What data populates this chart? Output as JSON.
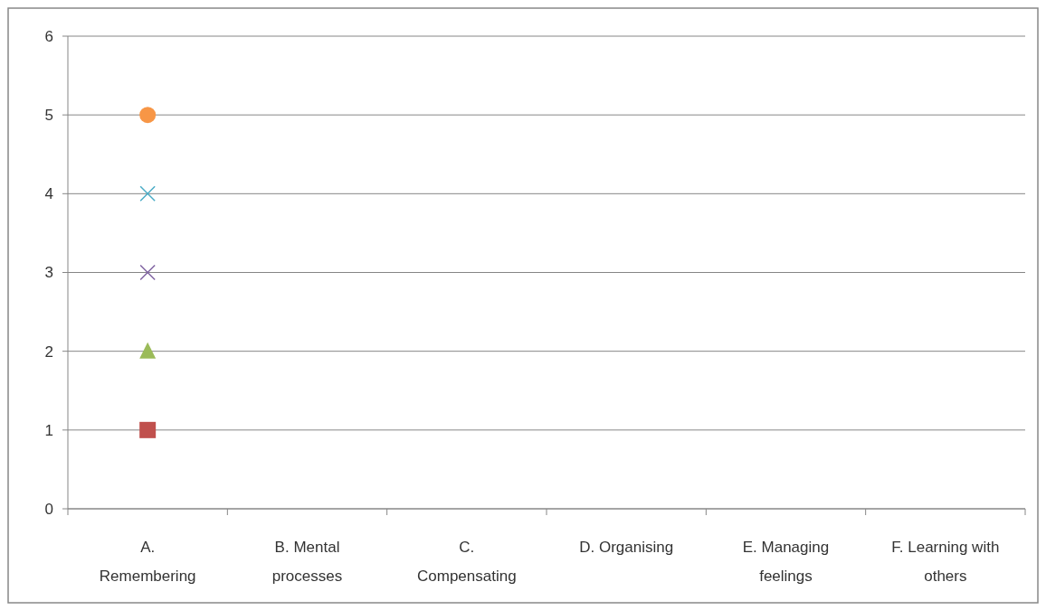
{
  "chart_data": {
    "type": "scatter",
    "categories": [
      "A.\nRemembering",
      "B. Mental\nprocesses",
      "C.\nCompensating",
      "D. Organising",
      "E. Managing\nfeelings",
      "F. Learning with\nothers"
    ],
    "ylim": [
      0,
      6
    ],
    "yticks": [
      0,
      1,
      2,
      3,
      4,
      5,
      6
    ],
    "grid": "y",
    "series": [
      {
        "color": "#c0504d",
        "marker": "square",
        "values": [
          1,
          null,
          null,
          null,
          null,
          null
        ]
      },
      {
        "color": "#9bbb59",
        "marker": "triangle",
        "values": [
          2,
          null,
          null,
          null,
          null,
          null
        ]
      },
      {
        "color": "#8064a2",
        "marker": "cross",
        "values": [
          3,
          null,
          null,
          null,
          null,
          null
        ]
      },
      {
        "color": "#4bacc6",
        "marker": "cross",
        "values": [
          4,
          null,
          null,
          null,
          null,
          null
        ]
      },
      {
        "color": "#f79646",
        "marker": "circle",
        "values": [
          5,
          null,
          null,
          null,
          null,
          null
        ]
      }
    ]
  }
}
